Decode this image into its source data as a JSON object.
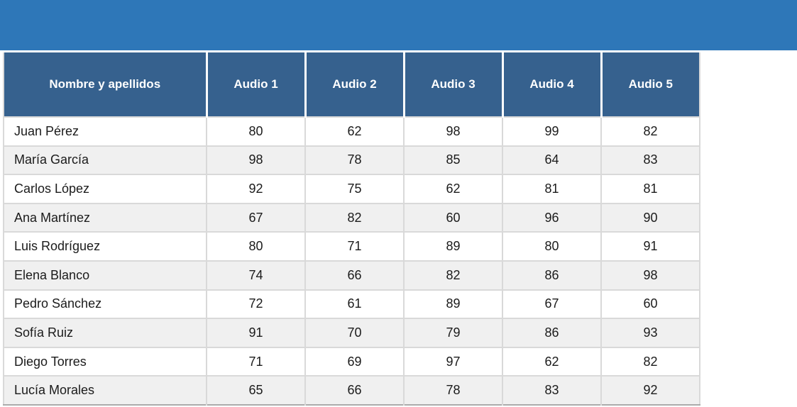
{
  "banner": {
    "text": "",
    "color": "#2E77B8"
  },
  "colors": {
    "header_bg": "#36618E",
    "header_text": "#FFFFFF",
    "body_text": "#1B1B1B",
    "row_alt": "#F0F0F0",
    "grid": "#D9D9D9",
    "bottom_border": "#ABABAB"
  },
  "table": {
    "columns": [
      "Nombre y apellidos",
      "Audio 1",
      "Audio 2",
      "Audio 3",
      "Audio 4",
      "Audio 5"
    ],
    "rows": [
      {
        "name": "Juan Pérez",
        "scores": [
          80,
          62,
          98,
          99,
          82
        ]
      },
      {
        "name": "María García",
        "scores": [
          98,
          78,
          85,
          64,
          83
        ]
      },
      {
        "name": "Carlos López",
        "scores": [
          92,
          75,
          62,
          81,
          81
        ]
      },
      {
        "name": "Ana Martínez",
        "scores": [
          67,
          82,
          60,
          96,
          90
        ]
      },
      {
        "name": "Luis Rodríguez",
        "scores": [
          80,
          71,
          89,
          80,
          91
        ]
      },
      {
        "name": "Elena Blanco",
        "scores": [
          74,
          66,
          82,
          86,
          98
        ]
      },
      {
        "name": "Pedro Sánchez",
        "scores": [
          72,
          61,
          89,
          67,
          60
        ]
      },
      {
        "name": "Sofía Ruiz",
        "scores": [
          91,
          70,
          79,
          86,
          93
        ]
      },
      {
        "name": "Diego Torres",
        "scores": [
          71,
          69,
          97,
          62,
          82
        ]
      },
      {
        "name": "Lucía Morales",
        "scores": [
          65,
          66,
          78,
          83,
          92
        ]
      }
    ]
  }
}
